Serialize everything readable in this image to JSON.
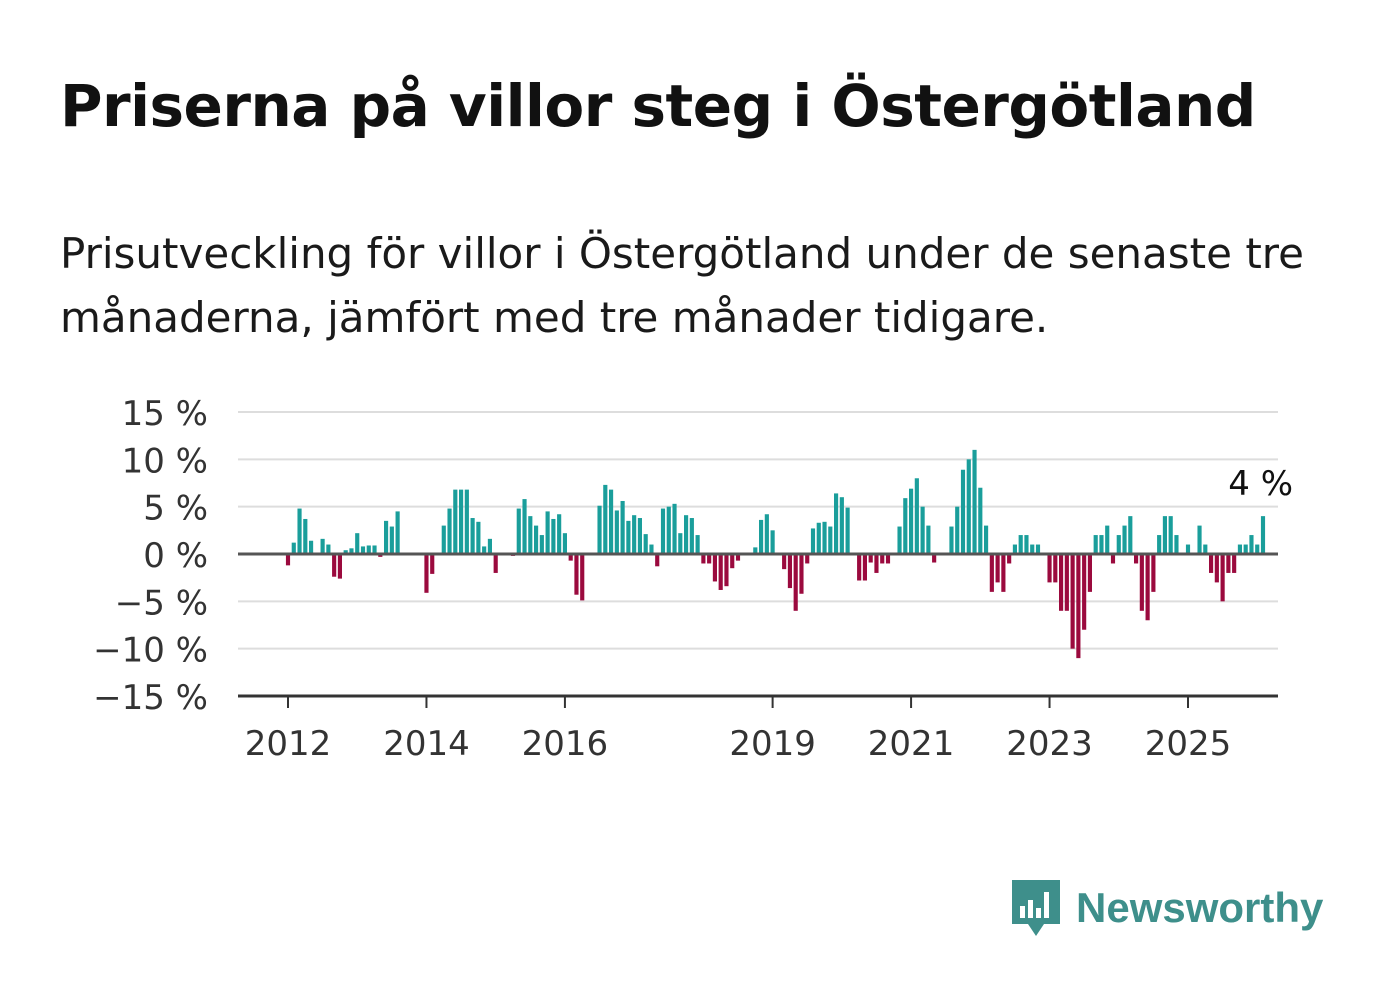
{
  "title": "Priserna på villor steg i Östergötland",
  "subtitle": "Prisutveckling för villor i Östergötland under de senaste tre månaderna, jämfört med tre månader tidigare.",
  "brand": {
    "name": "Newsworthy",
    "icon": "newsworthy-logo-icon"
  },
  "colors": {
    "positive": "#1a9e9b",
    "negative": "#9b0a3e",
    "grid": "#dddddd",
    "axis": "#333333",
    "brand": "#3e8f8b"
  },
  "chart_data": {
    "type": "bar",
    "ylim": [
      -15,
      15
    ],
    "yticks": [
      15,
      10,
      5,
      0,
      -5,
      -10,
      -15
    ],
    "ytick_labels": [
      "15 %",
      "10 %",
      "5 %",
      "0 %",
      "−5 %",
      "−10 %",
      "−15 %"
    ],
    "xticks": [
      "2012",
      "2014",
      "2016",
      "2019",
      "2021",
      "2023",
      "2025"
    ],
    "grid": true,
    "annotation": "4 %",
    "start": "2012-01",
    "end": "2025-08",
    "values": [
      -1.2,
      1.2,
      4.8,
      3.7,
      1.4,
      0,
      1.6,
      1.0,
      -2.4,
      -2.6,
      0.4,
      0.6,
      2.2,
      0.8,
      0.9,
      0.9,
      -0.3,
      3.5,
      2.9,
      4.5,
      0,
      0,
      0,
      0,
      -4.1,
      -2.1,
      0,
      3.0,
      4.8,
      6.8,
      6.8,
      6.8,
      3.8,
      3.4,
      0.8,
      1.6,
      -2.0,
      0,
      0,
      -0.2,
      4.8,
      5.8,
      4.0,
      3.0,
      2.0,
      4.5,
      3.7,
      4.2,
      2.2,
      -0.7,
      -4.3,
      -4.9,
      0,
      0,
      5.1,
      7.3,
      6.8,
      4.6,
      5.6,
      3.5,
      4.1,
      3.8,
      2.1,
      1.0,
      -1.3,
      4.8,
      5.0,
      5.3,
      2.2,
      4.1,
      3.8,
      2.0,
      -1.0,
      -1.0,
      -2.9,
      -3.8,
      -3.4,
      -1.5,
      -0.7,
      0,
      0,
      0.7,
      3.6,
      4.2,
      2.5,
      0,
      -1.6,
      -3.6,
      -6.0,
      -4.2,
      -1.0,
      2.7,
      3.3,
      3.4,
      2.9,
      6.4,
      6.0,
      4.9,
      0,
      -2.8,
      -2.8,
      -0.9,
      -2.0,
      -1.0,
      -1.0,
      0,
      2.9,
      5.9,
      6.9,
      8.0,
      5.0,
      3.0,
      -0.9,
      0,
      0,
      2.9,
      5.0,
      8.9,
      10.0,
      11.0,
      7.0,
      3.0,
      -4.0,
      -3.0,
      -4.0,
      -1.0,
      1.0,
      2.0,
      2.0,
      1.0,
      1.0,
      0,
      -3.0,
      -3.0,
      -6.0,
      -6.0,
      -10.0,
      -11.0,
      -8.0,
      -4.0,
      2.0,
      2.0,
      3.0,
      -1.0,
      2.0,
      3.0,
      4.0,
      -1.0,
      -6.0,
      -7.0,
      -4.0,
      2.0,
      4.0,
      4.0,
      2.0,
      0,
      1.0,
      0,
      3.0,
      1.0,
      -2.0,
      -3.0,
      -5.0,
      -2.0,
      -2.0,
      1.0,
      1.0,
      2.0,
      1.0,
      4.0
    ]
  }
}
